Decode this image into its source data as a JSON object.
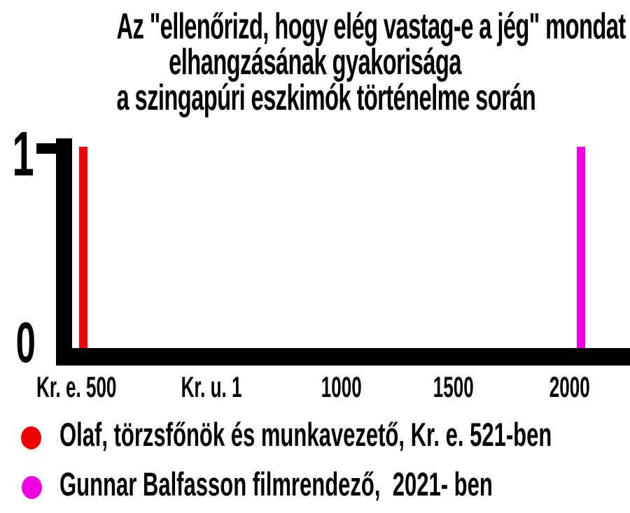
{
  "title": {
    "line1": "Az \"ellenőrizd, hogy elég vastag-e a jég\" mondat",
    "line2": "elhangzásának gyakorisága",
    "line3": "a szingapúri eszkimók történelme során"
  },
  "y_axis": {
    "top_label": "1",
    "bottom_label": "0"
  },
  "x_axis": {
    "labels": [
      "Kr. e. 500",
      "Kr. u. 1",
      "1000",
      "1500",
      "2000"
    ]
  },
  "colors": {
    "axis": "#000000",
    "olaf": "#ee0101",
    "gunnar": "#f001e0"
  },
  "legend": {
    "items": [
      {
        "label": "Olaf, törzsfőnök és munkavezető, Kr. e. 521-ben",
        "color": "#ee0101"
      },
      {
        "label": "Gunnar Balfasson filmrendező,  2021- ben",
        "color": "#f001e0"
      }
    ]
  },
  "chart_data": {
    "type": "bar",
    "title": "Az \"ellenőrizd, hogy elég vastag-e a jég\" mondat elhangzásának gyakorisága a szingapúri eszkimók történelme során",
    "categories": [
      "Kr. e. 521",
      "2021"
    ],
    "values": [
      1,
      1
    ],
    "series": [
      {
        "name": "Olaf, törzsfőnök és munkavezető, Kr. e. 521-ben",
        "x": "Kr. e. 521",
        "value": 1,
        "color": "#ee0101"
      },
      {
        "name": "Gunnar Balfasson filmrendező, 2021- ben",
        "x": "2021",
        "value": 1,
        "color": "#f001e0"
      }
    ],
    "xlabel": "",
    "ylabel": "",
    "x_tick_labels": [
      "Kr. e. 500",
      "Kr. u. 1",
      "1000",
      "1500",
      "2000"
    ],
    "y_tick_labels": [
      "0",
      "1"
    ],
    "ylim": [
      0,
      1
    ],
    "grid": false,
    "legend_position": "bottom"
  }
}
